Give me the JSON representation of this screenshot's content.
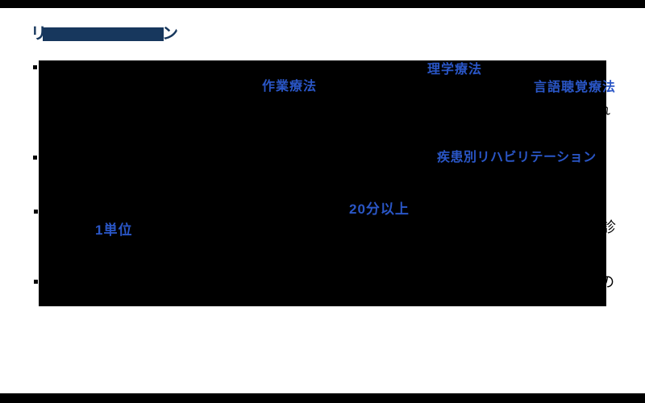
{
  "page": {
    "background_color": "#ffffff",
    "edge_bar_color": "#000000"
  },
  "title": {
    "visible_start": "リ",
    "visible_end": "ン",
    "color": "#17375d",
    "redacted_middle": true
  },
  "content": {
    "redaction_color": "#000000",
    "keyword_color": "#2a56c6",
    "bullet_marker": "・",
    "bullet_count": 4,
    "keywords": [
      {
        "id": "rigaku",
        "text": "理学療法"
      },
      {
        "id": "sagyou",
        "text": "作業療法"
      },
      {
        "id": "gengo",
        "text": "言語聴覚療法"
      },
      {
        "id": "shikkan",
        "text": "疾患別リハビリテーション"
      },
      {
        "id": "nijuppun",
        "text": "20分以上"
      },
      {
        "id": "tani",
        "text": "1単位"
      }
    ],
    "partial_glyphs": [
      {
        "id": "re",
        "char": "れ"
      },
      {
        "id": "shin",
        "char": "診"
      },
      {
        "id": "no",
        "char": "の"
      }
    ]
  }
}
